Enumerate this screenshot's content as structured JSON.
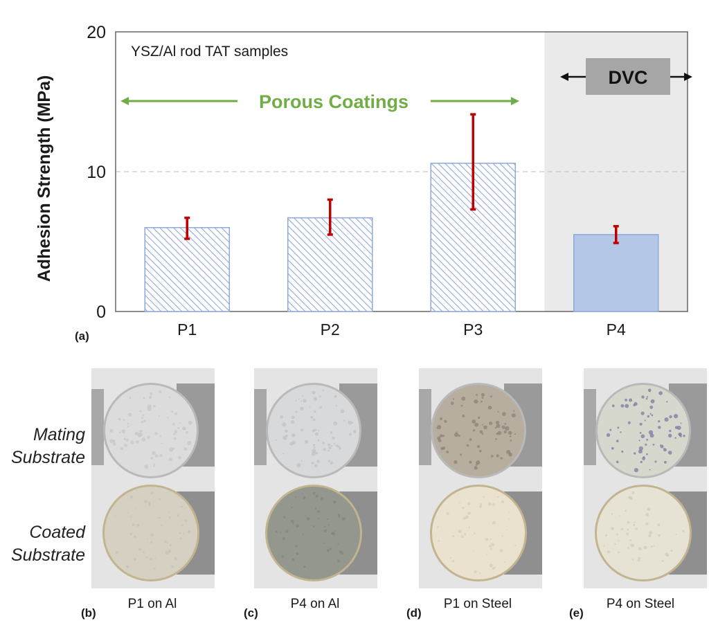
{
  "chart_data": {
    "type": "bar",
    "title": "YSZ/Al rod TAT samples",
    "xlabel": "",
    "ylabel": "Adhesion Strength (MPa)",
    "ylim": [
      0,
      20
    ],
    "yticks": [
      "0",
      "10",
      "20"
    ],
    "gridlines": [
      10
    ],
    "categories": [
      "P1",
      "P2",
      "P3",
      "P4"
    ],
    "values": [
      6.0,
      6.7,
      10.6,
      5.5
    ],
    "error_low": [
      5.2,
      5.5,
      7.3,
      4.9
    ],
    "error_high": [
      6.7,
      8.0,
      14.1,
      6.1
    ],
    "fill_style": [
      "hatched",
      "hatched",
      "hatched",
      "solid"
    ],
    "annotations": {
      "porous_label": "Porous Coatings",
      "dvc_label": "DVC",
      "dvc_region_start_category": "P4"
    },
    "colors": {
      "bar_edge": "#8fa8dc",
      "bar_solid": "#b4c7e7",
      "hatch": "#8fa8dc",
      "error_bar": "#c00000",
      "porous_green": "#70ad47",
      "dvc_shade": "#eaeaea",
      "dvc_box": "#a6a6a6"
    }
  },
  "panel_labels": {
    "a": "(a)",
    "b": "(b)",
    "c": "(c)",
    "d": "(d)",
    "e": "(e)"
  },
  "photos": {
    "row_labels": {
      "mating": "Mating Substrate",
      "coated": "Coated Substrate"
    },
    "items": [
      {
        "caption": "P1 on Al",
        "top_color": "#dcdcdc",
        "bottom_color": "#d6d0c2",
        "speckle_top": "#c9c9c9",
        "speckle_bottom": "#c8c1b2"
      },
      {
        "caption": "P4 on Al",
        "top_color": "#d8d9db",
        "bottom_color": "#93978d",
        "speckle_top": "#c2c4c7",
        "speckle_bottom": "#80857b"
      },
      {
        "caption": "P1 on Steel",
        "top_color": "#b7aea0",
        "bottom_color": "#eae2cf",
        "speckle_top": "#8f8578",
        "speckle_bottom": "#d9ccb0"
      },
      {
        "caption": "P4 on Steel",
        "top_color": "#d7d8cd",
        "bottom_color": "#e6e3d4",
        "speckle_top": "#7e82a3",
        "speckle_bottom": "#cfcabb"
      }
    ]
  }
}
